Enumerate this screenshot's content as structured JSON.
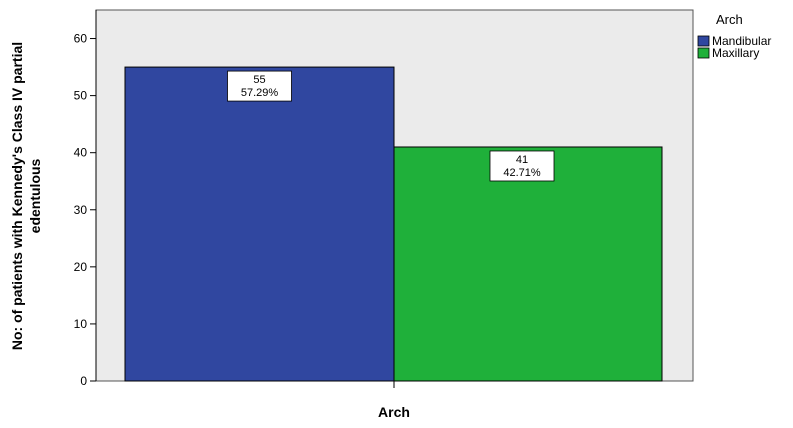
{
  "chart_data": {
    "type": "bar",
    "title": "",
    "xlabel": "Arch",
    "ylabel_line1": "No: of patients with Kennedy's Class IV partial",
    "ylabel_line2": "edentulous",
    "ylim": [
      0,
      65
    ],
    "yticks": [
      0,
      10,
      20,
      30,
      40,
      50,
      60
    ],
    "grid": false,
    "legend": {
      "title": "Arch",
      "placement": "top-right"
    },
    "series": [
      {
        "name": "Mandibular",
        "value": 55,
        "percent_label": "57.29%",
        "count_label": "55",
        "color": "#3047a0"
      },
      {
        "name": "Maxillary",
        "value": 41,
        "percent_label": "42.71%",
        "count_label": "41",
        "color": "#1fb03a"
      }
    ],
    "colors": {
      "plot_background": "#ebebeb",
      "bar_border": "#000000"
    }
  }
}
